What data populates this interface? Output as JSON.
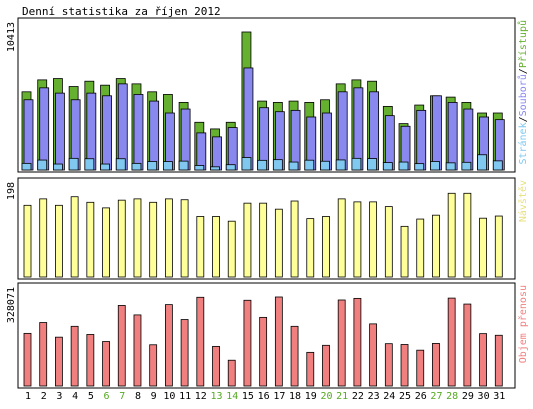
{
  "chart_data": [
    {
      "type": "bar",
      "title": "Denní statistika za říjen 2012",
      "ymax_label": "10413",
      "legend": [
        "Stránek",
        "Souborů",
        "Přístupů"
      ],
      "categories": [
        "1",
        "2",
        "3",
        "4",
        "5",
        "6",
        "7",
        "8",
        "9",
        "10",
        "11",
        "12",
        "13",
        "14",
        "15",
        "16",
        "17",
        "18",
        "19",
        "20",
        "21",
        "22",
        "23",
        "24",
        "25",
        "26",
        "27",
        "28",
        "29",
        "30",
        "31"
      ],
      "weekend_days": [
        "6",
        "7",
        "13",
        "14",
        "20",
        "21",
        "27",
        "28"
      ],
      "ylim": [
        0,
        10413
      ],
      "series": [
        {
          "name": "Přístupů",
          "color": "#66b030",
          "values": [
            5900,
            6800,
            6900,
            6300,
            6700,
            6400,
            6900,
            6500,
            5900,
            5700,
            5100,
            3600,
            3100,
            3600,
            10413,
            5200,
            5100,
            5200,
            5100,
            5300,
            6500,
            6800,
            6700,
            4800,
            3500,
            4900,
            5600,
            5500,
            5100,
            4300,
            4300
          ]
        },
        {
          "name": "Souborů",
          "color": "#8888ee",
          "values": [
            5300,
            6200,
            5800,
            5300,
            5800,
            5600,
            6500,
            5700,
            5200,
            4300,
            4600,
            2800,
            2500,
            3200,
            7700,
            4700,
            4400,
            4500,
            4000,
            4300,
            5900,
            6200,
            5900,
            4100,
            3300,
            4500,
            5600,
            5100,
            4600,
            4000,
            3800
          ]
        },
        {
          "name": "Stránek",
          "color": "#80c8f0",
          "values": [
            500,
            750,
            450,
            880,
            850,
            450,
            850,
            500,
            640,
            640,
            670,
            340,
            240,
            400,
            940,
            730,
            780,
            600,
            740,
            660,
            760,
            880,
            860,
            560,
            600,
            480,
            640,
            540,
            580,
            1150,
            690
          ]
        }
      ]
    },
    {
      "type": "bar",
      "legend": [
        "Návštěv"
      ],
      "ymax_label": "198",
      "categories": [
        "1",
        "2",
        "3",
        "4",
        "5",
        "6",
        "7",
        "8",
        "9",
        "10",
        "11",
        "12",
        "13",
        "14",
        "15",
        "16",
        "17",
        "18",
        "19",
        "20",
        "21",
        "22",
        "23",
        "24",
        "25",
        "26",
        "27",
        "28",
        "29",
        "30",
        "31"
      ],
      "ylim": [
        0,
        198
      ],
      "series": [
        {
          "name": "Návštěv",
          "color": "#ffff99",
          "values": [
            167,
            182,
            167,
            187,
            174,
            161,
            179,
            182,
            174,
            182,
            180,
            141,
            141,
            130,
            172,
            172,
            158,
            177,
            136,
            141,
            182,
            175,
            175,
            164,
            118,
            135,
            144,
            195,
            195,
            137,
            142
          ]
        }
      ]
    },
    {
      "type": "bar",
      "legend": [
        "Objem přenosu"
      ],
      "ymax_label": "328071",
      "categories": [
        "1",
        "2",
        "3",
        "4",
        "5",
        "6",
        "7",
        "8",
        "9",
        "10",
        "11",
        "12",
        "13",
        "14",
        "15",
        "16",
        "17",
        "18",
        "19",
        "20",
        "21",
        "22",
        "23",
        "24",
        "25",
        "26",
        "27",
        "28",
        "29",
        "30",
        "31"
      ],
      "ylim": [
        0,
        328071
      ],
      "series": [
        {
          "name": "Objem přenosu",
          "color": "#f08080",
          "values": [
            194000,
            234000,
            180000,
            220000,
            190000,
            164000,
            297000,
            262000,
            152000,
            300000,
            245000,
            327000,
            146000,
            95000,
            316000,
            253000,
            328071,
            220000,
            124000,
            150000,
            317000,
            323000,
            229000,
            156000,
            153000,
            132000,
            157000,
            324000,
            302000,
            193000,
            187000
          ]
        }
      ]
    }
  ]
}
